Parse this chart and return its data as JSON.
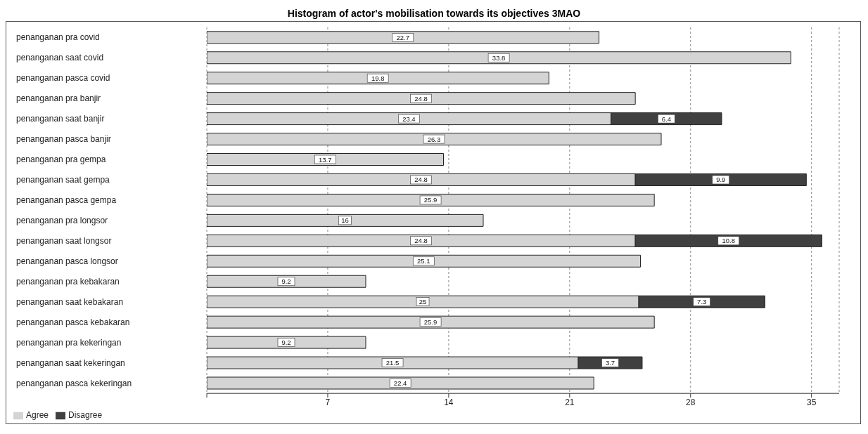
{
  "chart_data": {
    "type": "bar",
    "title": "Histogram of actor's mobilisation towards its objectives 3MAO",
    "orientation": "horizontal",
    "stacked": true,
    "categories": [
      "penanganan pra covid",
      "penanganan saat covid",
      "penanganan pasca covid",
      "penanganan pra banjir",
      "penanganan saat banjir",
      "penanganan pasca banjir",
      "penanganan pra gempa",
      "penanganan saat gempa",
      "penanganan pasca gempa",
      "penanganan pra longsor",
      "penanganan saat longsor",
      "penanganan pasca longsor",
      "penanganan pra kebakaran",
      "penanganan saat kebakaran",
      "penanganan pasca kebakaran",
      "penanganan pra kekeringan",
      "penanganan saat kekeringan",
      "penanganan pasca kekeringan"
    ],
    "series": [
      {
        "name": "Agree",
        "color": "#d4d4d4",
        "values": [
          22.7,
          33.8,
          19.8,
          24.8,
          23.4,
          26.3,
          13.7,
          24.8,
          25.9,
          16,
          24.8,
          25.1,
          9.2,
          25,
          25.9,
          9.2,
          21.5,
          22.4
        ]
      },
      {
        "name": "Disagree",
        "color": "#404040",
        "values": [
          null,
          null,
          null,
          null,
          6.4,
          null,
          null,
          9.9,
          null,
          null,
          10.8,
          null,
          null,
          7.3,
          null,
          null,
          3.7,
          null
        ]
      }
    ],
    "xlim": [
      0,
      36.6
    ],
    "xticks": [
      {
        "value": 0,
        "label": null
      },
      7,
      14,
      21,
      28,
      35
    ],
    "grid": "x",
    "legend": "bottom left",
    "data_labels": true
  }
}
